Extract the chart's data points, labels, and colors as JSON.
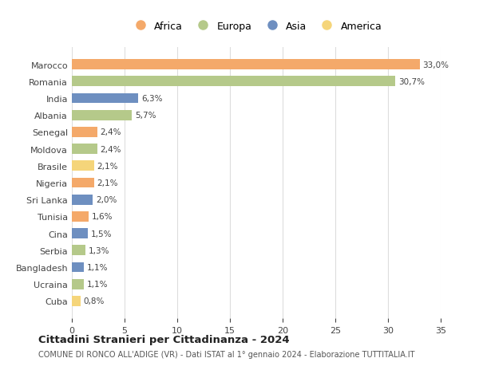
{
  "countries": [
    "Marocco",
    "Romania",
    "India",
    "Albania",
    "Senegal",
    "Moldova",
    "Brasile",
    "Nigeria",
    "Sri Lanka",
    "Tunisia",
    "Cina",
    "Serbia",
    "Bangladesh",
    "Ucraina",
    "Cuba"
  ],
  "values": [
    33.0,
    30.7,
    6.3,
    5.7,
    2.4,
    2.4,
    2.1,
    2.1,
    2.0,
    1.6,
    1.5,
    1.3,
    1.1,
    1.1,
    0.8
  ],
  "labels": [
    "33,0%",
    "30,7%",
    "6,3%",
    "5,7%",
    "2,4%",
    "2,4%",
    "2,1%",
    "2,1%",
    "2,0%",
    "1,6%",
    "1,5%",
    "1,3%",
    "1,1%",
    "1,1%",
    "0,8%"
  ],
  "continents": [
    "Africa",
    "Europa",
    "Asia",
    "Europa",
    "Africa",
    "Europa",
    "America",
    "Africa",
    "Asia",
    "Africa",
    "Asia",
    "Europa",
    "Asia",
    "Europa",
    "America"
  ],
  "colors": {
    "Africa": "#F4A96A",
    "Europa": "#B5C98A",
    "Asia": "#6E8FC0",
    "America": "#F5D57A"
  },
  "legend_order": [
    "Africa",
    "Europa",
    "Asia",
    "America"
  ],
  "title": "Cittadini Stranieri per Cittadinanza - 2024",
  "subtitle": "COMUNE DI RONCO ALL'ADIGE (VR) - Dati ISTAT al 1° gennaio 2024 - Elaborazione TUTTITALIA.IT",
  "xlim": [
    0,
    35
  ],
  "xticks": [
    0,
    5,
    10,
    15,
    20,
    25,
    30,
    35
  ],
  "background_color": "#ffffff",
  "grid_color": "#dddddd",
  "bar_height": 0.6
}
